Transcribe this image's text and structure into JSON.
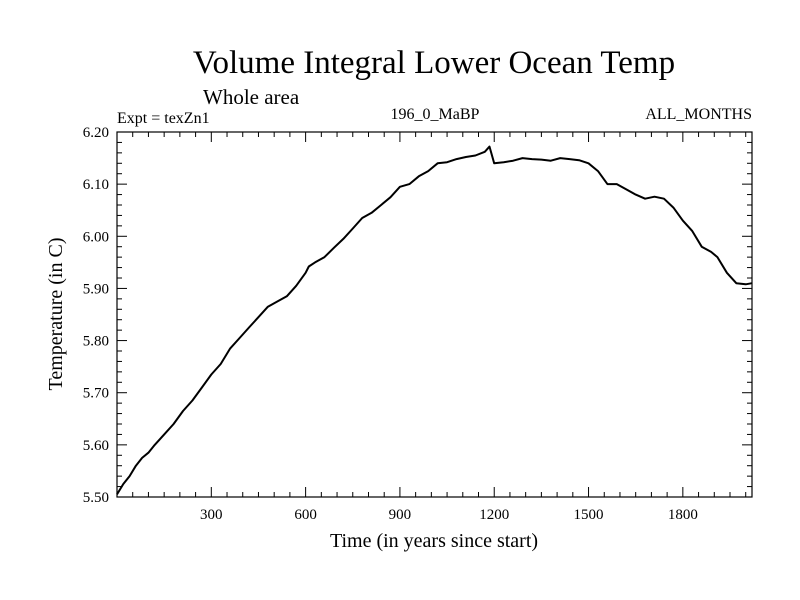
{
  "chart_data": {
    "type": "line",
    "title": "Volume Integral Lower Ocean Temp",
    "subtitle": "Whole area",
    "experiment": "Expt = texZn1",
    "period": "196_0_MaBP",
    "months": "ALL_MONTHS",
    "xlabel": "Time (in years since start)",
    "ylabel": "Temperature (in C)",
    "xlim": [
      0,
      2020
    ],
    "ylim": [
      5.5,
      6.2
    ],
    "xticks": [
      300,
      600,
      900,
      1200,
      1500,
      1800
    ],
    "xtick_labels": [
      "300",
      "600",
      "900",
      "1200",
      "1500",
      "1800"
    ],
    "yticks": [
      5.5,
      5.6,
      5.7,
      5.8,
      5.9,
      6.0,
      6.1,
      6.2
    ],
    "ytick_labels": [
      "5.50",
      "5.60",
      "5.70",
      "5.80",
      "5.90",
      "6.00",
      "6.10",
      "6.20"
    ],
    "series": [
      {
        "name": "Volume Integral Lower Ocean Temp",
        "color": "#000000",
        "x": [
          0,
          20,
          40,
          60,
          80,
          100,
          120,
          150,
          180,
          210,
          240,
          270,
          300,
          330,
          360,
          390,
          420,
          450,
          480,
          510,
          540,
          570,
          600,
          610,
          630,
          660,
          690,
          720,
          750,
          780,
          810,
          840,
          870,
          900,
          930,
          960,
          990,
          1020,
          1050,
          1080,
          1110,
          1140,
          1170,
          1185,
          1200,
          1230,
          1260,
          1290,
          1320,
          1350,
          1380,
          1410,
          1440,
          1470,
          1500,
          1530,
          1560,
          1590,
          1620,
          1650,
          1680,
          1710,
          1740,
          1770,
          1800,
          1830,
          1860,
          1890,
          1910,
          1940,
          1970,
          2000,
          2020
        ],
        "values": [
          5.505,
          5.525,
          5.54,
          5.56,
          5.575,
          5.585,
          5.6,
          5.62,
          5.64,
          5.665,
          5.685,
          5.71,
          5.735,
          5.755,
          5.785,
          5.805,
          5.825,
          5.845,
          5.865,
          5.875,
          5.885,
          5.905,
          5.93,
          5.942,
          5.95,
          5.96,
          5.978,
          5.995,
          6.015,
          6.035,
          6.045,
          6.06,
          6.075,
          6.095,
          6.1,
          6.115,
          6.125,
          6.14,
          6.142,
          6.148,
          6.152,
          6.155,
          6.162,
          6.172,
          6.14,
          6.142,
          6.145,
          6.15,
          6.148,
          6.147,
          6.145,
          6.15,
          6.148,
          6.146,
          6.14,
          6.125,
          6.1,
          6.1,
          6.09,
          6.08,
          6.072,
          6.076,
          6.072,
          6.055,
          6.03,
          6.01,
          5.98,
          5.97,
          5.96,
          5.93,
          5.91,
          5.908,
          5.91
        ]
      }
    ]
  }
}
